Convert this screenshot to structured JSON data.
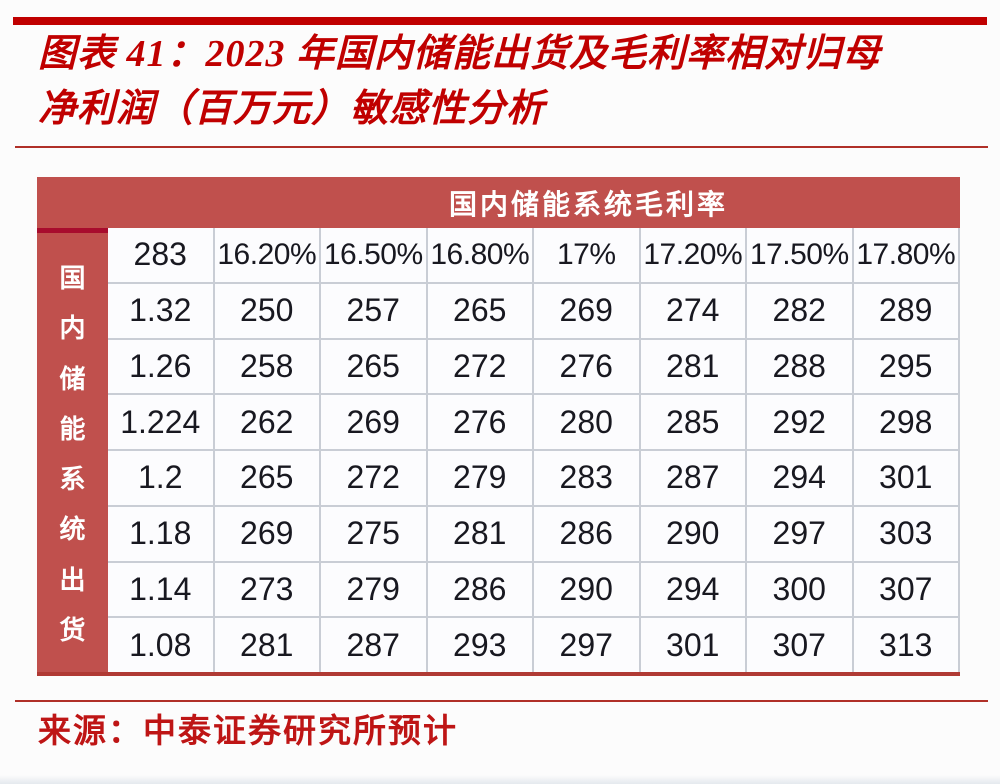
{
  "colors": {
    "accent_red": "#C00000",
    "rule_red": "#B03028",
    "band_red": "#C0504D",
    "crimson_accent": "#A80C2D",
    "table_bottom_red": "#B03A34",
    "grid_line": "#C9CDD5",
    "number_ink": "#181820",
    "source_red": "#BE1515"
  },
  "figure": {
    "title_line1": "图表 41：2023 年国内储能出货及毛利率相对归母",
    "title_line2": "净利润（百万元）敏感性分析",
    "source": "来源：中泰证券研究所预计"
  },
  "table": {
    "column_axis_title": "国内储能系统毛利率",
    "row_axis_title": "国内储能系统出货",
    "row_axis_chars": [
      "国",
      "内",
      "储",
      "能",
      "系",
      "统",
      "出",
      "货"
    ],
    "base_value": "283",
    "margin_headers": [
      "16.20%",
      "16.50%",
      "16.80%",
      "17%",
      "17.20%",
      "17.50%",
      "17.80%"
    ],
    "shipment_values": [
      "1.32",
      "1.26",
      "1.224",
      "1.2",
      "1.18",
      "1.14",
      "1.08"
    ],
    "grid": [
      [
        "283",
        "16.20%",
        "16.50%",
        "16.80%",
        "17%",
        "17.20%",
        "17.50%",
        "17.80%"
      ],
      [
        "1.32",
        "250",
        "257",
        "265",
        "269",
        "274",
        "282",
        "289"
      ],
      [
        "1.26",
        "258",
        "265",
        "272",
        "276",
        "281",
        "288",
        "295"
      ],
      [
        "1.224",
        "262",
        "269",
        "276",
        "280",
        "285",
        "292",
        "298"
      ],
      [
        "1.2",
        "265",
        "272",
        "279",
        "283",
        "287",
        "294",
        "301"
      ],
      [
        "1.18",
        "269",
        "275",
        "281",
        "286",
        "290",
        "297",
        "303"
      ],
      [
        "1.14",
        "273",
        "279",
        "286",
        "290",
        "294",
        "300",
        "307"
      ],
      [
        "1.08",
        "281",
        "287",
        "293",
        "297",
        "301",
        "307",
        "313"
      ]
    ]
  }
}
